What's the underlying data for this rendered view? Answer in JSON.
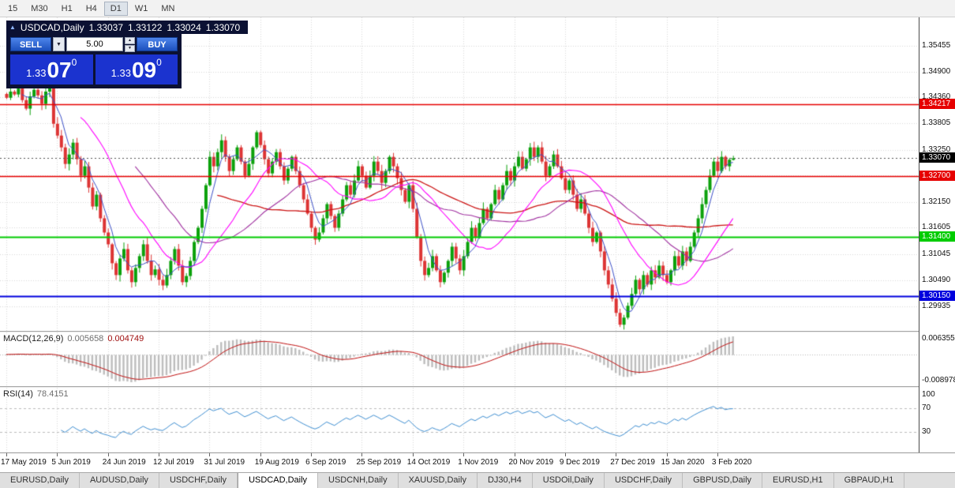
{
  "toolbar": {
    "timeframes": [
      "15",
      "M30",
      "H1",
      "H4",
      "D1",
      "W1",
      "MN"
    ],
    "active": "D1"
  },
  "header": {
    "arrow": "▲",
    "symbol": "USDCAD,Daily",
    "open": "1.33037",
    "high": "1.33122",
    "low": "1.33024",
    "close": "1.33070"
  },
  "trade_panel": {
    "sell_label": "SELL",
    "buy_label": "BUY",
    "volume": "5.00",
    "dropdown_glyph": "▼",
    "spin_up": "▲",
    "spin_down": "▼",
    "bid": {
      "prefix": "1.33",
      "big": "07",
      "sup": "0"
    },
    "ask": {
      "prefix": "1.33",
      "big": "09",
      "sup": "0"
    }
  },
  "colors": {
    "bull": "#0ba10b",
    "bear": "#dd3434",
    "panel_navy": "#0b1133",
    "button_blue": "#2a62d2",
    "price_blue": "#1b33cf",
    "grid": "#d9d9d9",
    "macd_hist": "#bdbdbd",
    "macd_signal": "#c01010",
    "rsi_line": "#3f8fd2",
    "level_red": "#e60000",
    "level_green": "#00cc00",
    "level_blue": "#0000dd",
    "current_tag": "#000000"
  },
  "indicators": {
    "macd": {
      "name": "MACD(12,26,9)",
      "value1": "0.005658",
      "value2": "0.004749",
      "axis_max": "0.006355",
      "axis_min": "-0.008978"
    },
    "rsi": {
      "name": "RSI(14)",
      "value": "78.4151",
      "levels": [
        "100",
        "70",
        "30"
      ],
      "level_values": [
        100,
        70,
        30
      ]
    }
  },
  "price_axis": {
    "labels": [
      "1.35455",
      "1.34900",
      "1.34360",
      "1.33805",
      "1.33250",
      "1.32705",
      "1.32150",
      "1.31605",
      "1.31045",
      "1.30490",
      "1.29935"
    ]
  },
  "time_axis": {
    "labels": [
      {
        "text": "17 May 2019",
        "bar": 0
      },
      {
        "text": "5 Jun 2019",
        "bar": 13
      },
      {
        "text": "24 Jun 2019",
        "bar": 26
      },
      {
        "text": "12 Jul 2019",
        "bar": 39
      },
      {
        "text": "31 Jul 2019",
        "bar": 52
      },
      {
        "text": "19 Aug 2019",
        "bar": 65
      },
      {
        "text": "6 Sep 2019",
        "bar": 78
      },
      {
        "text": "25 Sep 2019",
        "bar": 91
      },
      {
        "text": "14 Oct 2019",
        "bar": 104
      },
      {
        "text": "1 Nov 2019",
        "bar": 117
      },
      {
        "text": "20 Nov 2019",
        "bar": 130
      },
      {
        "text": "9 Dec 2019",
        "bar": 143
      },
      {
        "text": "27 Dec 2019",
        "bar": 156
      },
      {
        "text": "15 Jan 2020",
        "bar": 169
      },
      {
        "text": "3 Feb 2020",
        "bar": 182
      }
    ]
  },
  "tabs": {
    "items": [
      "EURUSD,Daily",
      "AUDUSD,Daily",
      "USDCHF,Daily",
      "USDCAD,Daily",
      "USDCNH,Daily",
      "XAUUSD,Daily",
      "DJ30,H4",
      "USDOil,Daily",
      "USDCHF,Daily",
      "GBPUSD,Daily",
      "EURUSD,H1",
      "GBPAUD,H1"
    ],
    "active_index": 3
  },
  "chart_data": {
    "type": "candlestick",
    "symbol": "USDCAD",
    "timeframe": "Daily",
    "title": "USDCAD,Daily",
    "price_range": {
      "min": 1.2942,
      "max": 1.3605
    },
    "current": {
      "open": 1.33037,
      "high": 1.33122,
      "low": 1.33024,
      "close": 1.3307,
      "label": "1.33070"
    },
    "levels": [
      {
        "price": 1.34217,
        "label": "1.34217",
        "color": "#e60000",
        "width": 1.4
      },
      {
        "price": 1.327,
        "label": "1.32700",
        "color": "#e60000",
        "width": 1.4
      },
      {
        "price": 1.314,
        "label": "1.31400",
        "color": "#00cc00",
        "width": 2
      },
      {
        "price": 1.3015,
        "label": "1.30150",
        "color": "#0000dd",
        "width": 2
      }
    ],
    "moving_averages": [
      {
        "period": 55,
        "color": "#cc1414",
        "width": 1.3
      },
      {
        "period": 34,
        "color": "#a030a0",
        "width": 1.1
      },
      {
        "period": 20,
        "color": "#ff00ff",
        "width": 1.1
      },
      {
        "period": 5,
        "color": "#3c50c8",
        "width": 1
      }
    ],
    "closes": [
      1.3435,
      1.3448,
      1.3442,
      1.3455,
      1.343,
      1.3412,
      1.3438,
      1.3452,
      1.344,
      1.3422,
      1.3448,
      1.346,
      1.338,
      1.3355,
      1.333,
      1.3295,
      1.3315,
      1.334,
      1.3305,
      1.327,
      1.329,
      1.3245,
      1.3205,
      1.323,
      1.318,
      1.315,
      1.3125,
      1.3085,
      1.306,
      1.3095,
      1.3115,
      1.307,
      1.3045,
      1.3075,
      1.31,
      1.3125,
      1.309,
      1.306,
      1.3072,
      1.305,
      1.3038,
      1.306,
      1.309,
      1.3115,
      1.308,
      1.3045,
      1.3058,
      1.309,
      1.313,
      1.316,
      1.32,
      1.325,
      1.331,
      1.329,
      1.332,
      1.3345,
      1.331,
      1.328,
      1.3305,
      1.333,
      1.33,
      1.327,
      1.3295,
      1.333,
      1.3362,
      1.3335,
      1.3305,
      1.3275,
      1.33,
      1.332,
      1.329,
      1.326,
      1.3285,
      1.331,
      1.328,
      1.325,
      1.322,
      1.319,
      1.316,
      1.3135,
      1.315,
      1.318,
      1.321,
      1.3185,
      1.316,
      1.319,
      1.322,
      1.325,
      1.323,
      1.326,
      1.329,
      1.327,
      1.3245,
      1.327,
      1.33,
      1.328,
      1.3255,
      1.328,
      1.331,
      1.329,
      1.3265,
      1.324,
      1.3215,
      1.325,
      1.32,
      1.314,
      1.309,
      1.306,
      1.3075,
      1.31,
      1.307,
      1.3045,
      1.3065,
      1.309,
      1.312,
      1.3095,
      1.307,
      1.31,
      1.313,
      1.316,
      1.314,
      1.317,
      1.32,
      1.318,
      1.321,
      1.324,
      1.322,
      1.325,
      1.328,
      1.326,
      1.329,
      1.331,
      1.3285,
      1.3305,
      1.333,
      1.331,
      1.333,
      1.33,
      1.327,
      1.329,
      1.3315,
      1.329,
      1.3265,
      1.324,
      1.326,
      1.323,
      1.32,
      1.322,
      1.319,
      1.316,
      1.313,
      1.315,
      1.311,
      1.307,
      1.304,
      1.301,
      1.298,
      1.2955,
      1.297,
      1.2995,
      1.302,
      1.305,
      1.303,
      1.306,
      1.304,
      1.307,
      1.3055,
      1.308,
      1.306,
      1.3045,
      1.307,
      1.31,
      1.308,
      1.311,
      1.309,
      1.312,
      1.315,
      1.318,
      1.321,
      1.324,
      1.327,
      1.33,
      1.328,
      1.331,
      1.329,
      1.3304,
      1.3307
    ]
  }
}
